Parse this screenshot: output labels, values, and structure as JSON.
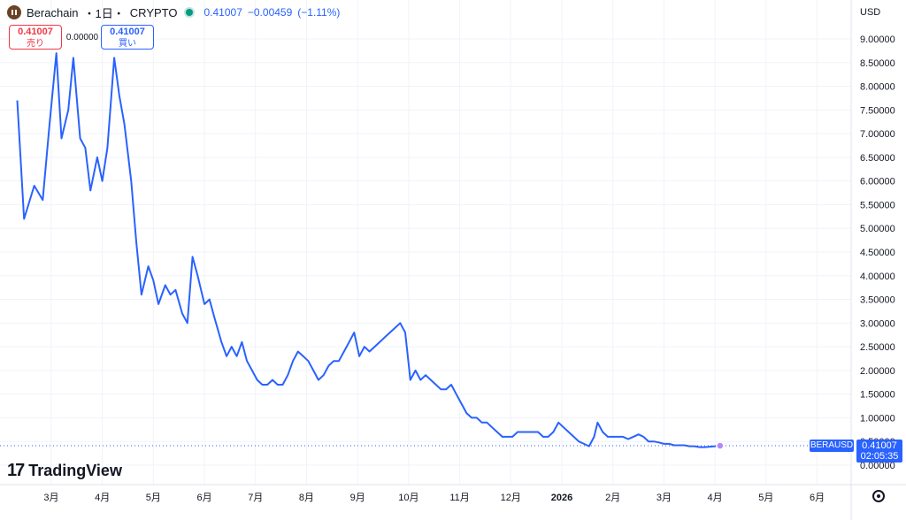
{
  "header": {
    "symbol": "Berachain",
    "interval": "・1日・",
    "exchange": "CRYPTO",
    "price": "0.41007",
    "change": "−0.00459",
    "change_pct": "(−1.11%)",
    "icon": "berachain-logo-icon",
    "live_icon": "live-dot-icon"
  },
  "trade": {
    "sell_price": "0.41007",
    "sell_label": "売り",
    "spread": "0.00000",
    "buy_price": "0.41007",
    "buy_label": "買い"
  },
  "currency": "USD",
  "brand": {
    "mark": "17",
    "name": "TradingView"
  },
  "last_tag": {
    "symbol": "BERAUSD",
    "price": "0.41007",
    "countdown": "02:05:35"
  },
  "colors": {
    "line": "#2962ff",
    "up": "#089981",
    "down": "#f23645",
    "grid": "#f0f3fa",
    "axis_text": "#131722"
  },
  "chart_data": {
    "type": "line",
    "series": [
      {
        "values": [
          [
            0.0,
            7.7
          ],
          [
            0.4,
            5.2
          ],
          [
            1.0,
            5.9
          ],
          [
            1.5,
            5.6
          ],
          [
            1.9,
            7.2
          ],
          [
            2.3,
            8.7
          ],
          [
            2.6,
            6.9
          ],
          [
            3.0,
            7.5
          ],
          [
            3.3,
            8.6
          ],
          [
            3.7,
            6.9
          ],
          [
            4.0,
            6.7
          ],
          [
            4.3,
            5.8
          ],
          [
            4.7,
            6.5
          ],
          [
            5.0,
            6.0
          ],
          [
            5.3,
            6.7
          ],
          [
            5.7,
            8.6
          ],
          [
            6.0,
            7.8
          ],
          [
            6.3,
            7.2
          ],
          [
            6.7,
            6.0
          ],
          [
            7.0,
            4.7
          ],
          [
            7.3,
            3.6
          ],
          [
            7.7,
            4.2
          ],
          [
            8.0,
            3.9
          ],
          [
            8.3,
            3.4
          ],
          [
            8.7,
            3.8
          ],
          [
            9.0,
            3.6
          ],
          [
            9.3,
            3.7
          ],
          [
            9.7,
            3.2
          ],
          [
            10.0,
            3.0
          ],
          [
            10.3,
            4.4
          ],
          [
            10.6,
            4.0
          ],
          [
            11.0,
            3.4
          ],
          [
            11.3,
            3.5
          ],
          [
            11.6,
            3.1
          ],
          [
            12.0,
            2.6
          ],
          [
            12.3,
            2.3
          ],
          [
            12.6,
            2.5
          ],
          [
            12.9,
            2.3
          ],
          [
            13.2,
            2.6
          ],
          [
            13.5,
            2.2
          ],
          [
            13.8,
            2.0
          ],
          [
            14.1,
            1.8
          ],
          [
            14.4,
            1.7
          ],
          [
            14.7,
            1.7
          ],
          [
            15.0,
            1.8
          ],
          [
            15.3,
            1.7
          ],
          [
            15.6,
            1.7
          ],
          [
            15.9,
            1.9
          ],
          [
            16.2,
            2.2
          ],
          [
            16.5,
            2.4
          ],
          [
            16.8,
            2.3
          ],
          [
            17.1,
            2.2
          ],
          [
            17.4,
            2.0
          ],
          [
            17.7,
            1.8
          ],
          [
            18.0,
            1.9
          ],
          [
            18.3,
            2.1
          ],
          [
            18.6,
            2.2
          ],
          [
            18.9,
            2.2
          ],
          [
            19.2,
            2.4
          ],
          [
            19.5,
            2.6
          ],
          [
            19.8,
            2.8
          ],
          [
            20.1,
            2.3
          ],
          [
            20.4,
            2.5
          ],
          [
            20.7,
            2.4
          ],
          [
            21.0,
            2.5
          ],
          [
            21.3,
            2.6
          ],
          [
            21.6,
            2.7
          ],
          [
            21.9,
            2.8
          ],
          [
            22.2,
            2.9
          ],
          [
            22.5,
            3.0
          ],
          [
            22.8,
            2.8
          ],
          [
            23.1,
            1.8
          ],
          [
            23.4,
            2.0
          ],
          [
            23.7,
            1.8
          ],
          [
            24.0,
            1.9
          ],
          [
            24.3,
            1.8
          ],
          [
            24.6,
            1.7
          ],
          [
            24.9,
            1.6
          ],
          [
            25.2,
            1.6
          ],
          [
            25.5,
            1.7
          ],
          [
            25.8,
            1.5
          ],
          [
            26.1,
            1.3
          ],
          [
            26.4,
            1.1
          ],
          [
            26.7,
            1.0
          ],
          [
            27.0,
            1.0
          ],
          [
            27.3,
            0.9
          ],
          [
            27.6,
            0.9
          ],
          [
            27.9,
            0.8
          ],
          [
            28.2,
            0.7
          ],
          [
            28.5,
            0.6
          ],
          [
            28.8,
            0.6
          ],
          [
            29.1,
            0.6
          ],
          [
            29.4,
            0.7
          ],
          [
            29.7,
            0.7
          ],
          [
            30.0,
            0.7
          ],
          [
            30.3,
            0.7
          ],
          [
            30.6,
            0.7
          ],
          [
            30.9,
            0.6
          ],
          [
            31.2,
            0.6
          ],
          [
            31.5,
            0.7
          ],
          [
            31.8,
            0.9
          ],
          [
            32.1,
            0.8
          ],
          [
            32.4,
            0.7
          ],
          [
            32.7,
            0.6
          ],
          [
            33.0,
            0.5
          ],
          [
            33.3,
            0.45
          ],
          [
            33.6,
            0.4
          ],
          [
            33.9,
            0.6
          ],
          [
            34.1,
            0.9
          ],
          [
            34.4,
            0.7
          ],
          [
            34.7,
            0.6
          ],
          [
            35.0,
            0.6
          ],
          [
            35.3,
            0.6
          ],
          [
            35.6,
            0.6
          ],
          [
            35.9,
            0.55
          ],
          [
            36.2,
            0.6
          ],
          [
            36.5,
            0.65
          ],
          [
            36.8,
            0.6
          ],
          [
            37.1,
            0.5
          ],
          [
            37.4,
            0.5
          ],
          [
            37.7,
            0.48
          ],
          [
            38.0,
            0.45
          ],
          [
            38.3,
            0.45
          ],
          [
            38.6,
            0.42
          ],
          [
            38.9,
            0.42
          ],
          [
            39.2,
            0.42
          ],
          [
            39.5,
            0.4
          ],
          [
            39.8,
            0.4
          ],
          [
            40.1,
            0.38
          ],
          [
            40.4,
            0.38
          ],
          [
            40.7,
            0.39
          ],
          [
            41.0,
            0.4
          ],
          [
            41.3,
            0.41
          ]
        ]
      }
    ],
    "x_ticks": [
      {
        "pos": 2,
        "label": "3月"
      },
      {
        "pos": 5,
        "label": "4月"
      },
      {
        "pos": 8,
        "label": "5月"
      },
      {
        "pos": 11,
        "label": "6月"
      },
      {
        "pos": 14,
        "label": "7月"
      },
      {
        "pos": 17,
        "label": "8月"
      },
      {
        "pos": 20,
        "label": "9月"
      },
      {
        "pos": 23,
        "label": "10月"
      },
      {
        "pos": 26,
        "label": "11月"
      },
      {
        "pos": 29,
        "label": "12月"
      },
      {
        "pos": 32,
        "label": "2026"
      },
      {
        "pos": 35,
        "label": "2月"
      },
      {
        "pos": 38,
        "label": "3月"
      },
      {
        "pos": 41,
        "label": "4月"
      },
      {
        "pos": 44,
        "label": "5月"
      },
      {
        "pos": 47,
        "label": "6月"
      }
    ],
    "x_range": [
      -0.7,
      49
    ],
    "y_ticks": [
      "9.00000",
      "8.50000",
      "8.00000",
      "7.50000",
      "7.00000",
      "6.50000",
      "6.00000",
      "5.50000",
      "5.00000",
      "4.50000",
      "4.00000",
      "3.50000",
      "3.00000",
      "2.50000",
      "2.00000",
      "1.50000",
      "1.00000",
      "0.50000",
      "0.00000"
    ],
    "ylim": [
      0,
      9
    ],
    "last_value": 0.41007,
    "grid": true
  }
}
